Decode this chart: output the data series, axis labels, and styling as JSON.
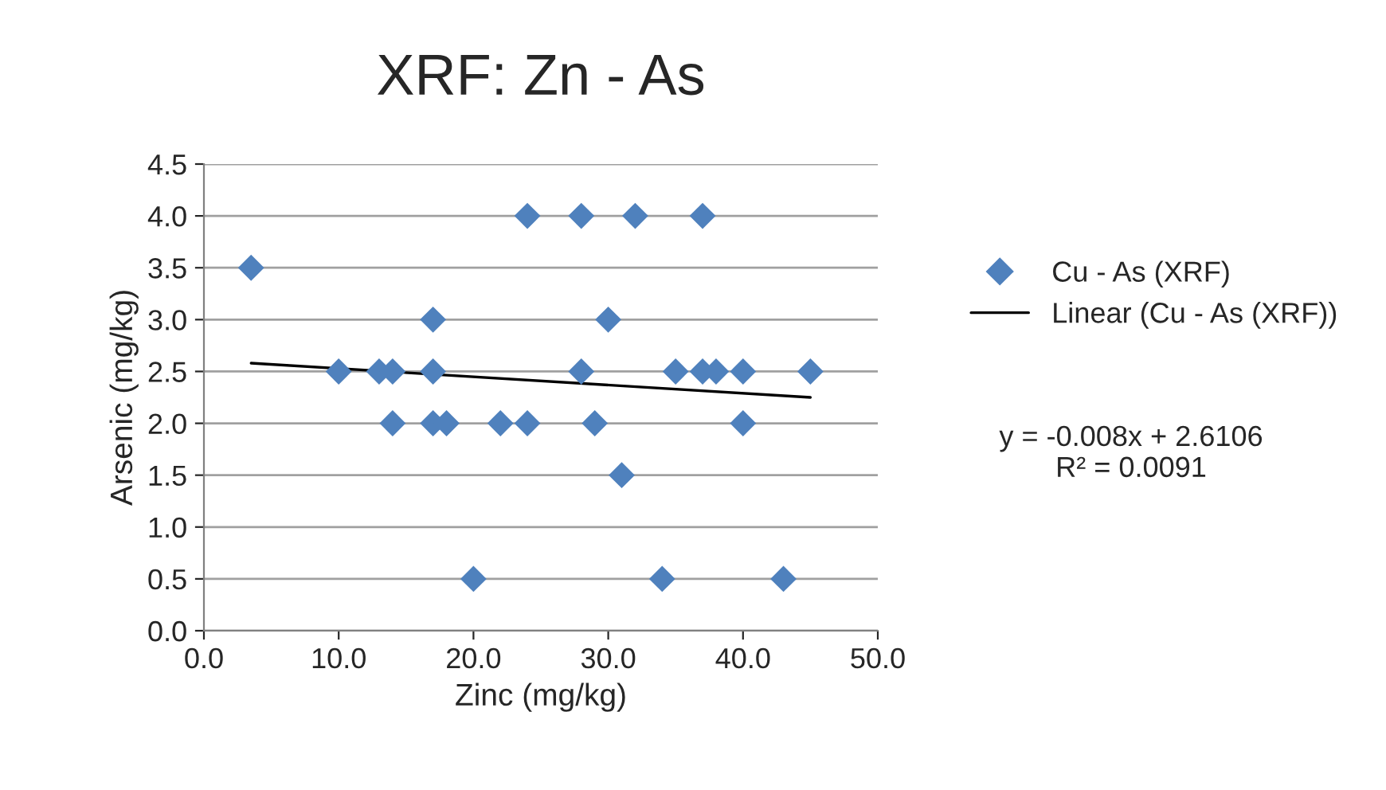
{
  "chart_data": {
    "type": "scatter",
    "title": "XRF: Zn - As",
    "xlabel": "Zinc (mg/kg)",
    "ylabel": "Arsenic (mg/kg)",
    "series": [
      {
        "name": "Cu - As (XRF)",
        "color": "#4f81bd",
        "marker": "diamond",
        "x": [
          3.5,
          10,
          13,
          14,
          14,
          17,
          17,
          17,
          18,
          22,
          24,
          24,
          28,
          28,
          29,
          30,
          31,
          32,
          35,
          37,
          37,
          38,
          40,
          40,
          45,
          20,
          34,
          43
        ],
        "values": [
          3.5,
          2.5,
          2.5,
          2.5,
          2.0,
          3.0,
          2.5,
          2.0,
          2.0,
          2.0,
          2.0,
          4.0,
          4.0,
          2.5,
          2.0,
          3.0,
          1.5,
          4.0,
          2.5,
          4.0,
          2.5,
          2.5,
          2.5,
          2.0,
          2.5,
          0.5,
          0.5,
          0.5
        ]
      },
      {
        "name": "Linear (Cu - As (XRF))",
        "type": "line",
        "color": "#000000",
        "line_style": "solid",
        "marker": "none",
        "x": [
          3.5,
          45
        ],
        "values": [
          2.58,
          2.25
        ]
      }
    ],
    "xlim": [
      0,
      50
    ],
    "xticks": [
      {
        "value": 0,
        "label": "0.0"
      },
      {
        "value": 10,
        "label": "10.0"
      },
      {
        "value": 20,
        "label": "20.0"
      },
      {
        "value": 30,
        "label": "30.0"
      },
      {
        "value": 40,
        "label": "40.0"
      },
      {
        "value": 50,
        "label": "50.0"
      }
    ],
    "ylim": [
      0,
      4.5
    ],
    "yticks": [
      {
        "value": 0,
        "label": "0.0"
      },
      {
        "value": 0.5,
        "label": "0.5"
      },
      {
        "value": 1,
        "label": "1.0"
      },
      {
        "value": 1.5,
        "label": "1.5"
      },
      {
        "value": 2,
        "label": "2.0"
      },
      {
        "value": 2.5,
        "label": "2.5"
      },
      {
        "value": 3,
        "label": "3.0"
      },
      {
        "value": 3.5,
        "label": "3.5"
      },
      {
        "value": 4,
        "label": "4.0"
      },
      {
        "value": 4.5,
        "label": "4.5"
      }
    ],
    "grid": "y",
    "legend": "right",
    "annotations": [
      "y = -0.008x + 2.6106\nR² = 0.0091"
    ]
  }
}
